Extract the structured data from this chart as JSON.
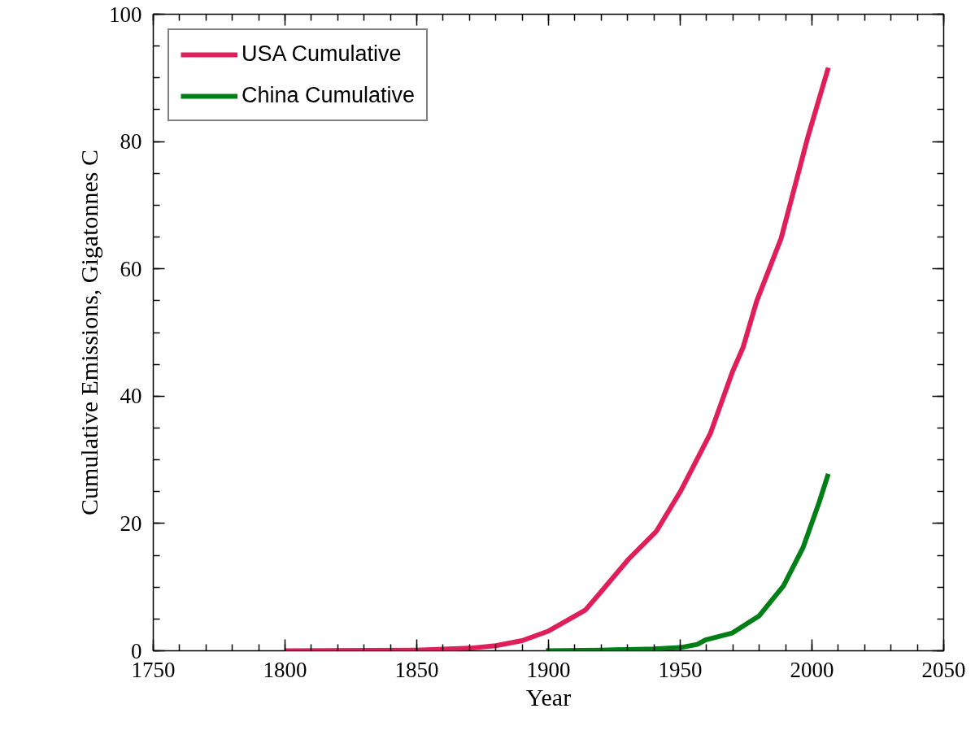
{
  "chart_data": {
    "type": "line",
    "xlabel": "Year",
    "ylabel": "Cumulative Emissions, Gigatonnes C",
    "xlim": [
      1750,
      2050
    ],
    "xticks": [
      1750,
      1800,
      1850,
      1900,
      1950,
      2000,
      2050
    ],
    "ylim": [
      0,
      100
    ],
    "yticks": [
      0,
      20,
      40,
      60,
      80,
      100
    ],
    "grid": false,
    "legend": "top left",
    "marker": "none",
    "line_style": "solid",
    "series": [
      {
        "name": "USA Cumulative",
        "color": "#e01e5a",
        "x": [
          1800,
          1850,
          1870,
          1880,
          1890,
          1900,
          1914,
          1920,
          1930.4,
          1941,
          1950.3,
          1961.4,
          1969.8,
          1973.8,
          1979,
          1988.3,
          1998.5,
          2006.2
        ],
        "values": [
          0,
          0.1,
          0.4,
          0.8,
          1.6,
          3.1,
          6.4,
          9.3,
          14.4,
          18.8,
          25.2,
          34.1,
          43.8,
          47.6,
          54.9,
          64.8,
          80.8,
          91.6
        ]
      },
      {
        "name": "China Cumulative",
        "color": "#007f16",
        "x": [
          1899,
          1920,
          1940,
          1950,
          1956.5,
          1959.6,
          1969.8,
          1980,
          1989.2,
          1996.6,
          2002.8,
          2006.2
        ],
        "values": [
          0,
          0.1,
          0.3,
          0.5,
          1.0,
          1.7,
          2.8,
          5.5,
          10.2,
          16.2,
          23.4,
          27.8
        ]
      }
    ]
  }
}
